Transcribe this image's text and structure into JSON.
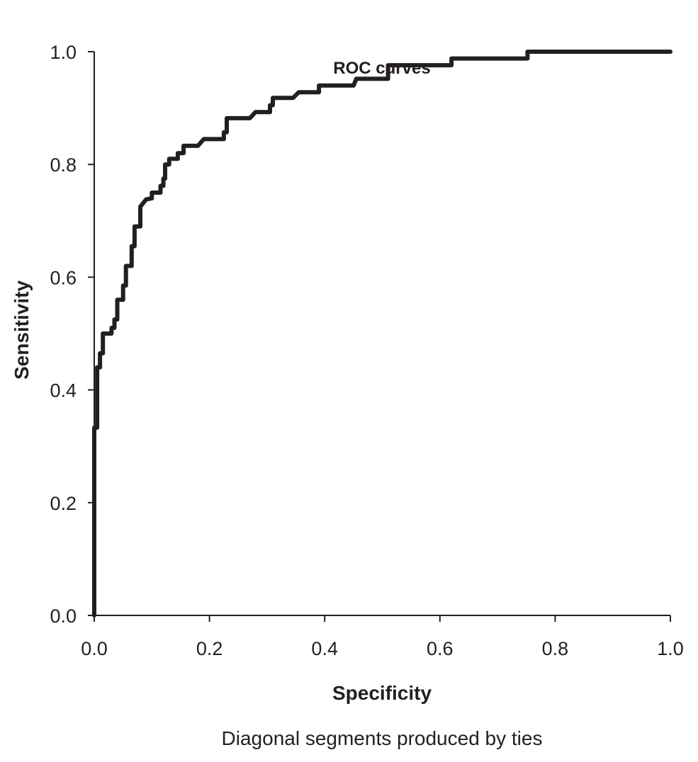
{
  "chart_data": {
    "type": "line",
    "title": "ROC curves",
    "xlabel": "Specificity",
    "ylabel": "Sensitivity",
    "note": "Diagonal segments produced by ties",
    "xlim": [
      0,
      1
    ],
    "ylim": [
      0,
      1
    ],
    "xticks": [
      "0.0",
      "0.2",
      "0.4",
      "0.6",
      "0.8",
      "1.0"
    ],
    "yticks": [
      "0.0",
      "0.2",
      "0.4",
      "0.6",
      "0.8",
      "1.0"
    ],
    "grid": false,
    "line_color": "#231f20",
    "series": [
      {
        "name": "ROC",
        "x": [
          0,
          0,
          0.005,
          0.005,
          0.01,
          0.01,
          0.015,
          0.015,
          0.03,
          0.03,
          0.035,
          0.035,
          0.04,
          0.04,
          0.05,
          0.05,
          0.055,
          0.055,
          0.065,
          0.065,
          0.07,
          0.07,
          0.08,
          0.08,
          0.09,
          0.1,
          0.1,
          0.115,
          0.115,
          0.12,
          0.12,
          0.123,
          0.123,
          0.13,
          0.13,
          0.145,
          0.145,
          0.155,
          0.155,
          0.18,
          0.19,
          0.225,
          0.225,
          0.23,
          0.23,
          0.27,
          0.28,
          0.305,
          0.305,
          0.31,
          0.31,
          0.345,
          0.355,
          0.39,
          0.39,
          0.45,
          0.455,
          0.51,
          0.51,
          0.62,
          0.62,
          0.752,
          0.752,
          1.0
        ],
        "y": [
          0,
          0.333,
          0.333,
          0.44,
          0.44,
          0.465,
          0.465,
          0.5,
          0.5,
          0.51,
          0.51,
          0.525,
          0.525,
          0.56,
          0.56,
          0.585,
          0.585,
          0.62,
          0.62,
          0.655,
          0.655,
          0.69,
          0.69,
          0.725,
          0.738,
          0.74,
          0.75,
          0.75,
          0.762,
          0.762,
          0.775,
          0.775,
          0.8,
          0.8,
          0.81,
          0.81,
          0.82,
          0.82,
          0.833,
          0.833,
          0.845,
          0.845,
          0.857,
          0.857,
          0.882,
          0.882,
          0.893,
          0.893,
          0.905,
          0.905,
          0.918,
          0.918,
          0.928,
          0.928,
          0.94,
          0.94,
          0.952,
          0.952,
          0.976,
          0.976,
          0.988,
          0.988,
          1.0,
          1.0
        ]
      }
    ]
  }
}
